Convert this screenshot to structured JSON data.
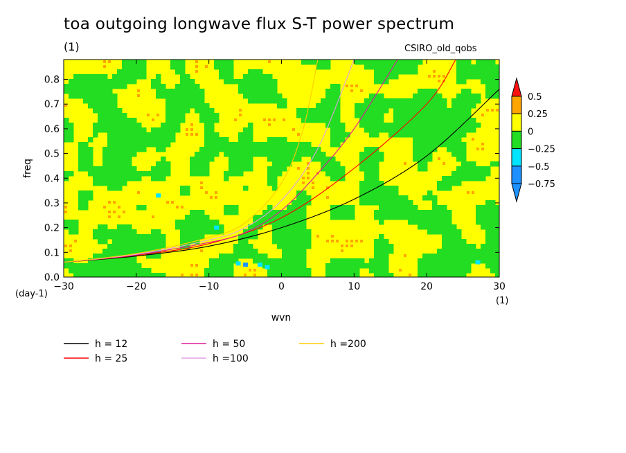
{
  "title": "toa outgoing longwave flux S-T power spectrum",
  "subtitle": "(1)",
  "model_label": "CSIRO_old_qobs",
  "chart_data": {
    "type": "heatmap",
    "xlabel": "wvn",
    "ylabel": "freq",
    "x_unit": "(1)",
    "y_unit": "(day-1)",
    "xlim": [
      -30,
      30
    ],
    "ylim": [
      0,
      0.88
    ],
    "x_ticks": [
      -30,
      -20,
      -10,
      0,
      10,
      20,
      30
    ],
    "x_tick_labels": [
      "−30",
      "−20",
      "−10",
      "0",
      "10",
      "20",
      "30"
    ],
    "y_ticks": [
      0,
      0.1,
      0.2,
      0.3,
      0.4,
      0.5,
      0.6,
      0.7,
      0.8
    ],
    "y_tick_labels": [
      "0.0",
      "0.1",
      "0.2",
      "0.3",
      "0.4",
      "0.5",
      "0.6",
      "0.7",
      "0.8"
    ],
    "colorbar": {
      "levels": [
        -0.75,
        -0.5,
        -0.25,
        0,
        0.25,
        0.5
      ],
      "level_labels": [
        "−0.75",
        "−0.5",
        "−0.25",
        "0",
        "0.25",
        "0.5"
      ],
      "colors": [
        "#1e90ff",
        "#1e90ff",
        "#00e5ff",
        "#22dd22",
        "#ffff00",
        "#ffa500",
        "#ff1010"
      ]
    },
    "field_colors": {
      "below_neg025": "#22dd22",
      "above_0": "#ffff00",
      "rare_orange": "#ffa500",
      "rare_cyan": "#00e5ff",
      "rare_blue": "#1e90ff"
    },
    "series": [
      {
        "name": "h = 12",
        "color": "#000000",
        "points": [
          [
            -30,
            0.06
          ],
          [
            -20,
            0.085
          ],
          [
            -10,
            0.125
          ],
          [
            0,
            0.2
          ],
          [
            10,
            0.315
          ],
          [
            20,
            0.49
          ],
          [
            30,
            0.76
          ]
        ]
      },
      {
        "name": "h = 25",
        "color": "#ff0000",
        "points": [
          [
            -30,
            0.06
          ],
          [
            -20,
            0.088
          ],
          [
            -10,
            0.135
          ],
          [
            0,
            0.24
          ],
          [
            10,
            0.44
          ],
          [
            20,
            0.7
          ],
          [
            24,
            0.88
          ]
        ]
      },
      {
        "name": "h = 50",
        "color": "#e0189a",
        "points": [
          [
            -30,
            0.06
          ],
          [
            -20,
            0.09
          ],
          [
            -10,
            0.14
          ],
          [
            -5,
            0.18
          ],
          [
            0,
            0.27
          ],
          [
            5,
            0.42
          ],
          [
            10,
            0.6
          ],
          [
            16,
            0.88
          ]
        ]
      },
      {
        "name": "h =100",
        "color": "#e4a0e4",
        "points": [
          [
            -30,
            0.06
          ],
          [
            -20,
            0.092
          ],
          [
            -10,
            0.15
          ],
          [
            -5,
            0.2
          ],
          [
            0,
            0.31
          ],
          [
            5,
            0.52
          ],
          [
            10,
            0.88
          ]
        ]
      },
      {
        "name": "h =200",
        "color": "#ffcc00",
        "points": [
          [
            -30,
            0.06
          ],
          [
            -20,
            0.095
          ],
          [
            -10,
            0.16
          ],
          [
            -5,
            0.22
          ],
          [
            0,
            0.38
          ],
          [
            3,
            0.6
          ],
          [
            5,
            0.88
          ]
        ]
      }
    ]
  },
  "legend": [
    {
      "label": "h = 12",
      "color": "#000000"
    },
    {
      "label": "h = 25",
      "color": "#ff0000"
    },
    {
      "label": "h = 50",
      "color": "#e0189a"
    },
    {
      "label": "h =100",
      "color": "#e4a0e4"
    },
    {
      "label": "h =200",
      "color": "#ffcc00"
    }
  ]
}
